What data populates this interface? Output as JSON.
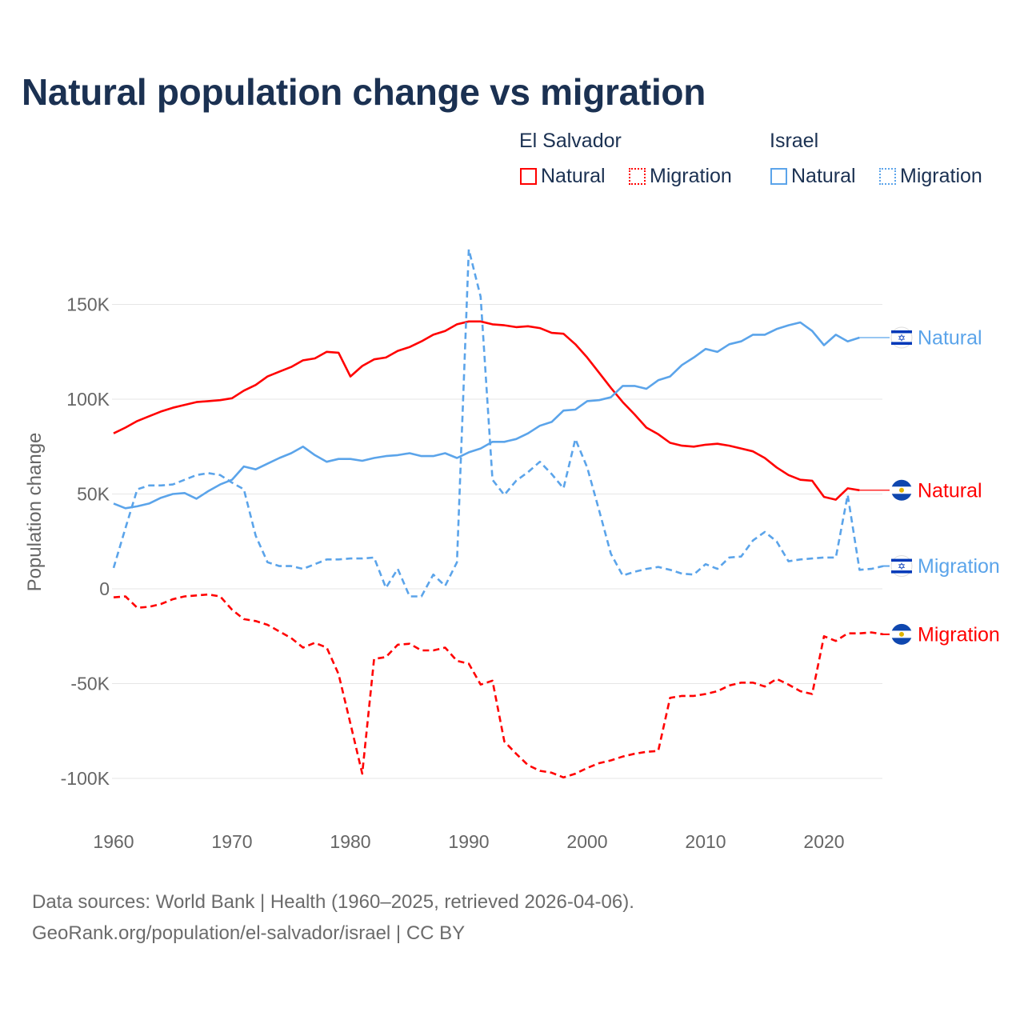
{
  "chart_data": {
    "type": "line",
    "title": "Natural population change vs migration",
    "xlabel": "",
    "ylabel": "Population change",
    "xlim": [
      1960,
      2025
    ],
    "ylim": [
      -120000,
      180000
    ],
    "x_ticks": [
      "1960",
      "1970",
      "1980",
      "1990",
      "2000",
      "2010",
      "2020"
    ],
    "y_ticks": [
      {
        "v": 150000,
        "label": "150K"
      },
      {
        "v": 100000,
        "label": "100K"
      },
      {
        "v": 50000,
        "label": "50K"
      },
      {
        "v": 0,
        "label": "0"
      },
      {
        "v": -50000,
        "label": "-50K"
      },
      {
        "v": -100000,
        "label": "-100K"
      }
    ],
    "grid": true,
    "legend": {
      "placement": "top-right",
      "groups": [
        {
          "country": "El Salvador",
          "items": [
            "Natural",
            "Migration"
          ]
        },
        {
          "country": "Israel",
          "items": [
            "Natural",
            "Migration"
          ]
        }
      ]
    },
    "series": [
      {
        "name": "El Salvador Natural",
        "country": "El Salvador",
        "kind": "Natural",
        "color": "#ff0000",
        "dashed": false,
        "start": 1960,
        "values": [
          82000,
          85000,
          88500,
          91000,
          93500,
          95500,
          97000,
          98500,
          99000,
          99500,
          100500,
          104500,
          107500,
          112000,
          114500,
          117000,
          120500,
          121500,
          125000,
          124500,
          112000,
          117500,
          121000,
          122000,
          125500,
          127500,
          130500,
          134000,
          136000,
          139500,
          141000,
          141000,
          139500,
          139000,
          138000,
          138500,
          137500,
          135000,
          134500,
          129000,
          122000,
          114000,
          106000,
          98500,
          92000,
          85000,
          81500,
          77000,
          75500,
          75000,
          76000,
          76500,
          75500,
          74000,
          72500,
          69000,
          64000,
          60000,
          57500,
          57000,
          48500,
          47000,
          53000,
          52000
        ]
      },
      {
        "name": "El Salvador Migration",
        "country": "El Salvador",
        "kind": "Migration",
        "color": "#ff0000",
        "dashed": true,
        "start": 1960,
        "values": [
          -4500,
          -4000,
          -10000,
          -9500,
          -8000,
          -5500,
          -4000,
          -3500,
          -3000,
          -4000,
          -11000,
          -16000,
          -17000,
          -19000,
          -22500,
          -26000,
          -31000,
          -28500,
          -31000,
          -45000,
          -71000,
          -97500,
          -37000,
          -36000,
          -29500,
          -29000,
          -32500,
          -32500,
          -31000,
          -38000,
          -39500,
          -50500,
          -48500,
          -80500,
          -87000,
          -93000,
          -96000,
          -97000,
          -99500,
          -97500,
          -94500,
          -92000,
          -90500,
          -88500,
          -87000,
          -86000,
          -85500,
          -57500,
          -56500,
          -56500,
          -55500,
          -54000,
          -51000,
          -49500,
          -49500,
          -51500,
          -47500,
          -50500,
          -54000,
          -55500,
          -25000,
          -27500,
          -23500,
          -23500,
          -23000,
          -24000
        ]
      },
      {
        "name": "Israel Natural",
        "country": "Israel",
        "kind": "Natural",
        "color": "#5ba4ea",
        "dashed": false,
        "start": 1960,
        "values": [
          45000,
          42500,
          43500,
          45000,
          48000,
          50000,
          50500,
          47500,
          51500,
          55000,
          57500,
          64500,
          63000,
          66000,
          69000,
          71500,
          75000,
          70500,
          67000,
          68500,
          68500,
          67500,
          69000,
          70000,
          70500,
          71500,
          70000,
          70000,
          71500,
          69000,
          72000,
          74000,
          77500,
          77500,
          79000,
          82000,
          86000,
          88000,
          94000,
          94500,
          99000,
          99500,
          101000,
          107000,
          107000,
          105500,
          110000,
          112000,
          118000,
          122000,
          126500,
          125000,
          129000,
          130500,
          134000,
          134000,
          137000,
          139000,
          140500,
          136000,
          128500,
          134000,
          130500,
          132500
        ]
      },
      {
        "name": "Israel Migration",
        "country": "Israel",
        "kind": "Migration",
        "color": "#5ba4ea",
        "dashed": true,
        "start": 1960,
        "values": [
          11000,
          32000,
          52500,
          54500,
          54500,
          55000,
          57500,
          60000,
          61000,
          60000,
          56000,
          52500,
          28000,
          14000,
          12000,
          12000,
          10500,
          13000,
          15500,
          15500,
          16000,
          16000,
          16500,
          500,
          10500,
          -4000,
          -4000,
          7500,
          1500,
          14000,
          179000,
          154000,
          57500,
          49500,
          57000,
          61500,
          67000,
          60500,
          53000,
          79000,
          64000,
          41500,
          18500,
          7000,
          9000,
          10500,
          11500,
          10000,
          8000,
          7500,
          13000,
          10500,
          16500,
          17000,
          25500,
          30000,
          25000,
          14500,
          15500,
          16000,
          16500,
          16500,
          49500,
          10000,
          10500,
          12000
        ]
      }
    ],
    "end_labels": [
      {
        "series": "Israel Natural",
        "text": "Natural"
      },
      {
        "series": "El Salvador Natural",
        "text": "Natural"
      },
      {
        "series": "Israel Migration",
        "text": "Migration"
      },
      {
        "series": "El Salvador Migration",
        "text": "Migration"
      }
    ]
  },
  "footer": {
    "line1": "Data sources: World Bank | Health (1960–2025, retrieved 2026-04-06).",
    "line2": "GeoRank.org/population/el-salvador/israel | CC BY"
  }
}
